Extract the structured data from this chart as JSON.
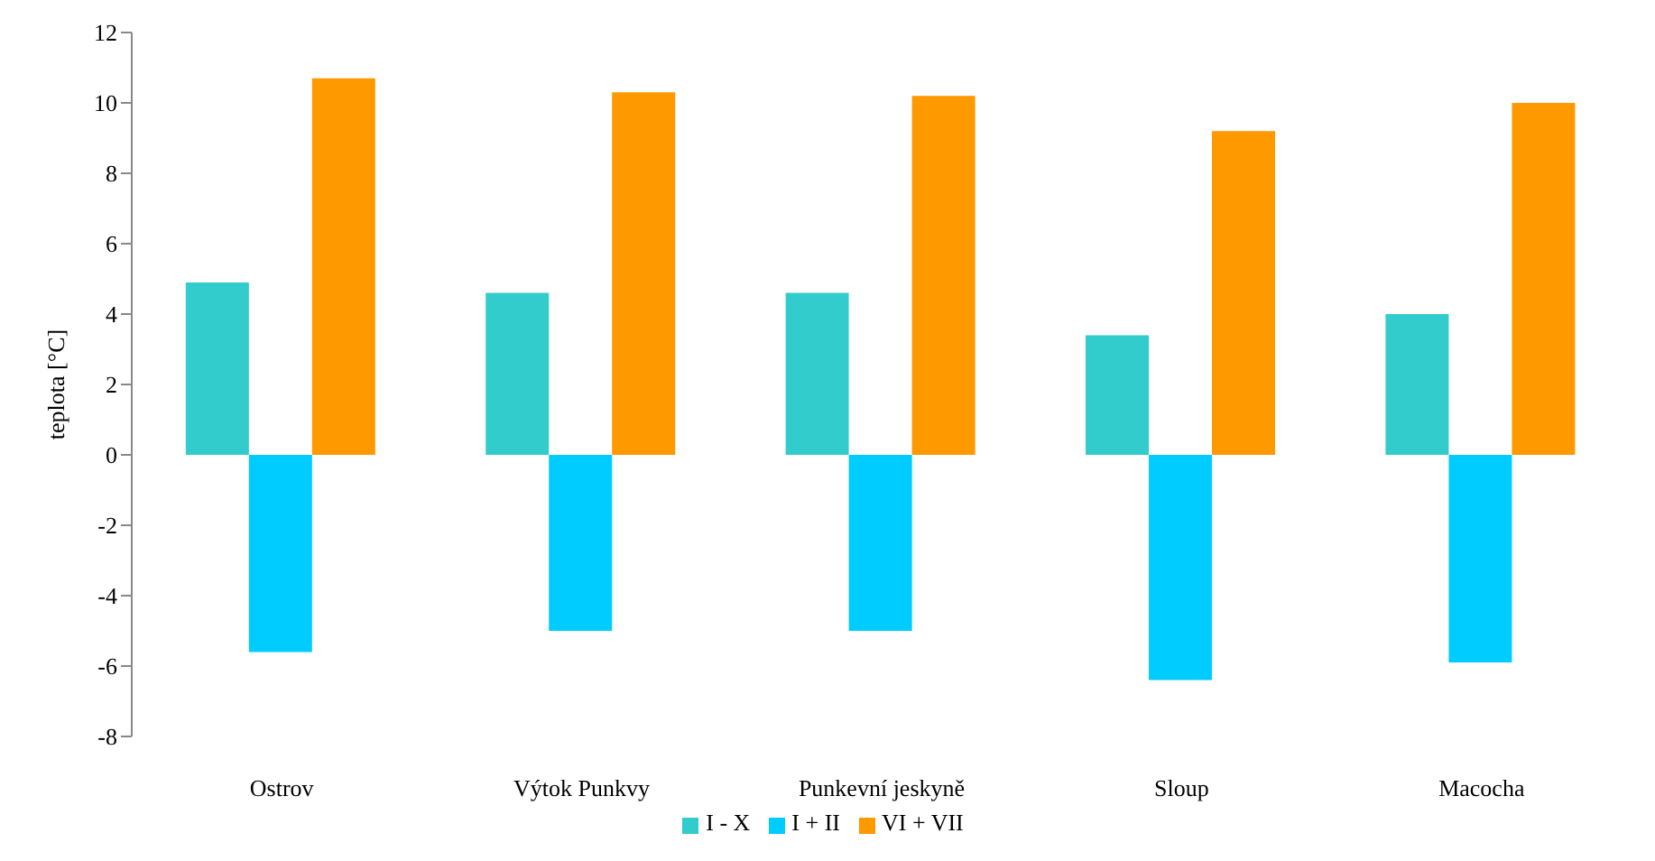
{
  "chart_data": {
    "type": "bar",
    "ylabel": "teplota [°C]",
    "categories": [
      "Ostrov",
      "Výtok Punkvy",
      "Punkevní jeskyně",
      "Sloup",
      "Macocha"
    ],
    "series": [
      {
        "name": "I - X",
        "color": "#33cccc",
        "values": [
          4.9,
          4.6,
          4.6,
          3.4,
          4.0
        ]
      },
      {
        "name": "I + II",
        "color": "#00ccff",
        "values": [
          -5.6,
          -5.0,
          -5.0,
          -6.4,
          -5.9
        ]
      },
      {
        "name": "VI + VII",
        "color": "#ff9900",
        "values": [
          10.7,
          10.3,
          10.2,
          9.2,
          10.0
        ]
      }
    ],
    "ylim": [
      -8,
      12
    ],
    "yticks": [
      -8,
      -6,
      -4,
      -2,
      0,
      2,
      4,
      6,
      8,
      10,
      12
    ],
    "legend": "bottom"
  }
}
